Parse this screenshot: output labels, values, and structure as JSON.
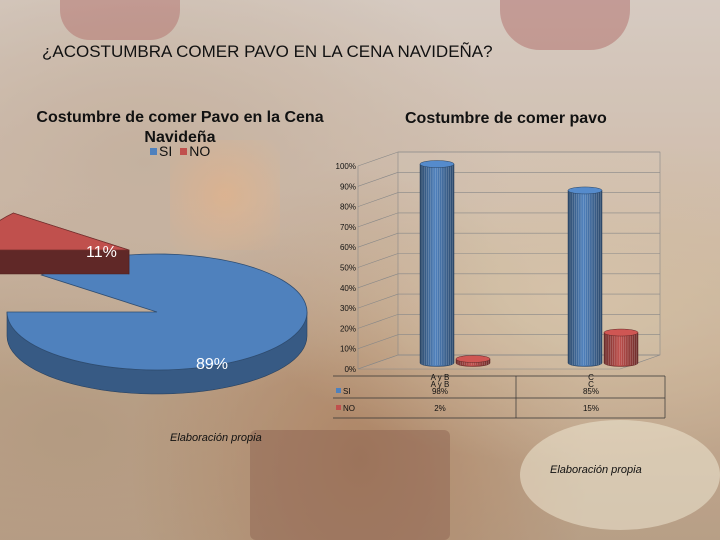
{
  "title": "¿ACOSTUMBRA COMER PAVO EN LA CENA NAVIDEÑA?",
  "credit_left": "Elaboración propia",
  "credit_right": "Elaboración propia",
  "colors": {
    "si": "#4f81bd",
    "no": "#c0504d"
  },
  "chart_data": [
    {
      "type": "pie",
      "title": "Costumbre de comer Pavo en la Cena Navideña",
      "legend": [
        "SI",
        "NO"
      ],
      "slices": [
        {
          "label": "SI",
          "value": 89,
          "display": "89%"
        },
        {
          "label": "NO",
          "value": 11,
          "display": "11%"
        }
      ]
    },
    {
      "type": "bar",
      "title": "Costumbre de comer pavo",
      "categories": [
        "A y B",
        "C"
      ],
      "category_labels": [
        [
          "A y B",
          "A y B"
        ],
        [
          "C",
          "C"
        ]
      ],
      "series": [
        {
          "name": "SI",
          "values": [
            98,
            85
          ],
          "display": [
            "98%",
            "85%"
          ]
        },
        {
          "name": "NO",
          "values": [
            2,
            15
          ],
          "display": [
            "2%",
            "15%"
          ]
        }
      ],
      "yticks": [
        "0%",
        "10%",
        "20%",
        "30%",
        "40%",
        "50%",
        "60%",
        "70%",
        "80%",
        "90%",
        "100%"
      ],
      "ylim": [
        0,
        100
      ]
    }
  ]
}
